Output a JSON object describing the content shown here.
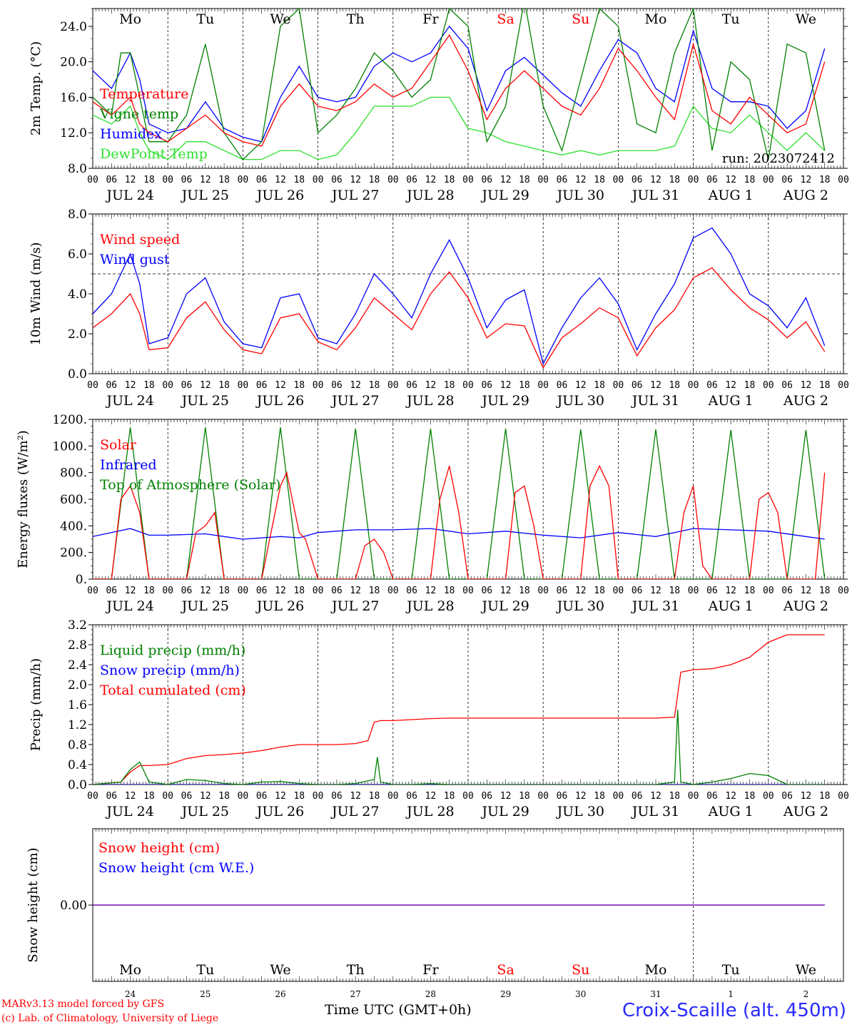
{
  "footer": {
    "model": "MARv3.13 model forced by GFS",
    "copyright": "(c) Lab. of Climatology, University of Liege",
    "time_label": "Time UTC (GMT+0h)",
    "station": "Croix-Scaille (alt. 450m)"
  },
  "colors": {
    "red": "#ff0000",
    "blue": "#0000ff",
    "green": "#008000",
    "lightgreen": "#2de02d",
    "purple": "#8000a0"
  },
  "days": [
    "Mo",
    "Tu",
    "We",
    "Th",
    "Fr",
    "Sa",
    "Su",
    "Mo",
    "Tu",
    "We"
  ],
  "weekend_days": [
    5,
    6
  ],
  "date_labels": [
    "JUL 24",
    "JUL 25",
    "JUL 26",
    "JUL 27",
    "JUL 28",
    "JUL 29",
    "JUL 30",
    "JUL 31",
    "AUG  1",
    "AUG  2"
  ],
  "day_numbers": [
    "24",
    "25",
    "26",
    "27",
    "28",
    "29",
    "30",
    "31",
    "1",
    "2"
  ],
  "hour_ticks": [
    "00",
    "06",
    "12",
    "18"
  ],
  "chart_data": [
    {
      "type": "line",
      "ylabel": "2m Temp. (°C)",
      "ylim": [
        8,
        26
      ],
      "yticks": [
        "8.0",
        "12.0",
        "16.0",
        "20.0",
        "24.0"
      ],
      "run_label": "run: 2023072412",
      "x_unit": "hours since 2023-07-24 00 UTC",
      "series": [
        {
          "name": "Temperature",
          "color": "red",
          "x": [
            0,
            6,
            12,
            15,
            18,
            24,
            30,
            36,
            42,
            48,
            54,
            60,
            66,
            72,
            78,
            84,
            90,
            96,
            102,
            108,
            114,
            120,
            126,
            132,
            138,
            144,
            150,
            156,
            162,
            168,
            174,
            180,
            186,
            192,
            198,
            204,
            210,
            216,
            222,
            228,
            234
          ],
          "y": [
            15.5,
            14,
            16,
            13,
            12,
            11,
            12.5,
            14,
            12,
            11,
            10.5,
            15,
            17.5,
            15,
            14.5,
            15.5,
            17.5,
            16,
            17,
            20,
            23,
            19,
            13.5,
            17,
            19,
            17,
            15,
            14,
            17,
            21.5,
            19,
            16,
            13.5,
            22,
            14.5,
            13,
            16,
            14,
            12,
            13,
            20
          ]
        },
        {
          "name": "Vigne temp",
          "color": "green",
          "x": [
            0,
            6,
            9,
            12,
            15,
            18,
            24,
            30,
            36,
            42,
            48,
            54,
            60,
            66,
            72,
            78,
            84,
            90,
            96,
            102,
            108,
            114,
            120,
            126,
            132,
            138,
            144,
            150,
            156,
            162,
            168,
            174,
            180,
            186,
            192,
            198,
            204,
            210,
            216,
            222,
            228,
            234
          ],
          "y": [
            16,
            14,
            21,
            21,
            16,
            11,
            11,
            14,
            22,
            12,
            9,
            11,
            24,
            26,
            12,
            14,
            17,
            21,
            19,
            16,
            18,
            26,
            24,
            11,
            15,
            27,
            15,
            10,
            18,
            26,
            24,
            13,
            12,
            21,
            26,
            10,
            20,
            18,
            9,
            22,
            21,
            10
          ]
        },
        {
          "name": "Humidex",
          "color": "blue",
          "x": [
            0,
            6,
            12,
            15,
            18,
            24,
            30,
            36,
            42,
            48,
            54,
            60,
            66,
            72,
            78,
            84,
            90,
            96,
            102,
            108,
            114,
            120,
            126,
            132,
            138,
            144,
            150,
            156,
            162,
            168,
            174,
            180,
            186,
            192,
            198,
            204,
            210,
            216,
            222,
            228,
            234
          ],
          "y": [
            19,
            17,
            21,
            18,
            13,
            12,
            12.5,
            15.5,
            12.5,
            11.5,
            11,
            16,
            19.5,
            16,
            15.5,
            16,
            19.5,
            21,
            20,
            21,
            24,
            21.5,
            14.5,
            19,
            20.5,
            18.5,
            16.5,
            15,
            19,
            22.5,
            21,
            17,
            15.5,
            23.5,
            17,
            15.5,
            15.5,
            15,
            12.5,
            14.5,
            21.5
          ]
        },
        {
          "name": "DewPoint Temp",
          "color": "lightgreen",
          "x": [
            0,
            6,
            12,
            15,
            18,
            24,
            30,
            36,
            42,
            48,
            54,
            60,
            66,
            72,
            78,
            84,
            90,
            96,
            102,
            108,
            114,
            120,
            126,
            132,
            138,
            144,
            150,
            156,
            162,
            168,
            174,
            180,
            186,
            192,
            198,
            204,
            210,
            216,
            222,
            228,
            234
          ],
          "y": [
            14,
            13,
            15,
            12,
            10,
            9,
            11,
            11,
            10,
            9,
            9,
            10,
            10,
            9,
            9.5,
            12,
            15,
            15,
            15,
            16,
            16,
            12.5,
            12,
            11,
            10.5,
            10,
            9.5,
            10,
            9.5,
            10,
            10,
            10,
            10.5,
            15,
            12.5,
            12,
            14,
            12,
            10,
            12,
            10
          ]
        }
      ]
    },
    {
      "type": "line",
      "ylabel": "10m Wind (m/s)",
      "ylim": [
        0,
        8
      ],
      "yticks": [
        "0.0",
        "2.0",
        "4.0",
        "6.0",
        "8.0"
      ],
      "reference_line": 5,
      "series": [
        {
          "name": "Wind speed",
          "color": "red",
          "x": [
            0,
            6,
            12,
            15,
            18,
            24,
            30,
            36,
            42,
            48,
            54,
            60,
            66,
            72,
            78,
            84,
            90,
            96,
            102,
            108,
            114,
            120,
            126,
            132,
            138,
            144,
            150,
            156,
            162,
            168,
            174,
            180,
            186,
            192,
            198,
            204,
            210,
            216,
            222,
            228,
            234
          ],
          "y": [
            2.3,
            3,
            4,
            3,
            1.2,
            1.3,
            2.8,
            3.6,
            2.2,
            1.2,
            1,
            2.8,
            3,
            1.6,
            1.2,
            2.3,
            3.8,
            3,
            2.2,
            4,
            5.1,
            3.8,
            1.8,
            2.5,
            2.4,
            0.3,
            1.8,
            2.5,
            3.3,
            2.8,
            0.9,
            2.3,
            3.2,
            4.8,
            5.3,
            4.2,
            3.3,
            2.7,
            1.8,
            2.6,
            1.1
          ]
        },
        {
          "name": "Wind gust",
          "color": "blue",
          "x": [
            0,
            6,
            12,
            15,
            18,
            24,
            30,
            36,
            42,
            48,
            54,
            60,
            66,
            72,
            78,
            84,
            90,
            96,
            102,
            108,
            114,
            120,
            126,
            132,
            138,
            144,
            150,
            156,
            162,
            168,
            174,
            180,
            186,
            192,
            198,
            204,
            210,
            216,
            222,
            228,
            234
          ],
          "y": [
            3,
            4,
            6,
            4.5,
            1.5,
            1.8,
            4,
            4.8,
            2.6,
            1.5,
            1.3,
            3.8,
            4,
            1.8,
            1.5,
            3,
            5,
            4,
            2.8,
            5,
            6.7,
            4.8,
            2.3,
            3.7,
            4.2,
            0.5,
            2.3,
            3.8,
            4.8,
            3.5,
            1.2,
            3,
            4.5,
            6.8,
            7.3,
            6,
            4,
            3.4,
            2.3,
            3.8,
            1.4
          ]
        }
      ]
    },
    {
      "type": "line",
      "ylabel": "Energy fluxes (W/m²)",
      "ylim": [
        0,
        1200
      ],
      "yticks": [
        "0.",
        "200.",
        "400.",
        "600.",
        "800.",
        "1000.",
        "1200."
      ],
      "series": [
        {
          "name": "Solar",
          "color": "red",
          "x": [
            0,
            6,
            9,
            12,
            15,
            18,
            24,
            30,
            33,
            36,
            39,
            42,
            48,
            54,
            60,
            62,
            66,
            68,
            72,
            78,
            84,
            87,
            90,
            93,
            96,
            102,
            108,
            111,
            114,
            117,
            120,
            126,
            132,
            135,
            138,
            141,
            144,
            150,
            156,
            159,
            162,
            165,
            168,
            174,
            180,
            186,
            189,
            192,
            195,
            198,
            204,
            210,
            213,
            216,
            219,
            222,
            228,
            231,
            234
          ],
          "y": [
            0,
            0,
            600,
            700,
            500,
            0,
            0,
            0,
            350,
            400,
            500,
            0,
            0,
            0,
            700,
            800,
            350,
            300,
            0,
            0,
            0,
            250,
            300,
            200,
            0,
            0,
            0,
            600,
            850,
            500,
            0,
            0,
            0,
            650,
            700,
            400,
            0,
            0,
            0,
            700,
            850,
            700,
            0,
            0,
            0,
            0,
            500,
            700,
            100,
            0,
            0,
            0,
            600,
            650,
            500,
            0,
            0,
            0,
            800
          ]
        },
        {
          "name": "Infrared",
          "color": "blue",
          "x": [
            0,
            12,
            18,
            24,
            36,
            42,
            48,
            60,
            66,
            72,
            84,
            96,
            108,
            120,
            132,
            144,
            156,
            168,
            180,
            192,
            204,
            216,
            228,
            234
          ],
          "y": [
            320,
            380,
            330,
            330,
            340,
            320,
            300,
            320,
            310,
            350,
            370,
            370,
            380,
            340,
            360,
            330,
            310,
            350,
            320,
            380,
            370,
            360,
            320,
            300
          ]
        },
        {
          "name": "Top of Atmosphere (Solar)",
          "color": "green",
          "x": [
            0,
            6,
            12,
            18,
            24,
            30,
            36,
            42,
            48,
            54,
            60,
            66,
            72,
            78,
            84,
            90,
            96,
            102,
            108,
            114,
            120,
            126,
            132,
            138,
            144,
            150,
            156,
            162,
            168,
            174,
            180,
            186,
            192,
            198,
            204,
            210,
            216,
            222,
            228,
            234
          ],
          "y": [
            0,
            0,
            1140,
            0,
            0,
            0,
            1140,
            0,
            0,
            0,
            1140,
            0,
            0,
            0,
            1130,
            0,
            0,
            0,
            1130,
            0,
            0,
            0,
            1130,
            0,
            0,
            0,
            1125,
            0,
            0,
            0,
            1125,
            0,
            0,
            0,
            1120,
            0,
            0,
            0,
            1120,
            0
          ]
        }
      ]
    },
    {
      "type": "line",
      "ylabel": "Precip (mm/h)",
      "ylim": [
        0,
        3.2
      ],
      "yticks": [
        "0.0",
        "0.4",
        "0.8",
        "1.2",
        "1.6",
        "2.0",
        "2.4",
        "2.8",
        "3.2"
      ],
      "series": [
        {
          "name": "Liquid precip (mm/h)",
          "color": "green",
          "x": [
            0,
            9,
            12,
            15,
            18,
            24,
            30,
            36,
            42,
            48,
            54,
            60,
            66,
            72,
            78,
            84,
            90,
            91,
            92,
            96,
            102,
            108,
            114,
            120,
            126,
            132,
            138,
            144,
            150,
            156,
            162,
            168,
            174,
            180,
            186,
            187,
            188,
            192,
            198,
            204,
            210,
            216,
            222,
            228,
            234
          ],
          "y": [
            0,
            0.05,
            0.3,
            0.45,
            0.05,
            0,
            0.1,
            0.08,
            0.02,
            0,
            0.05,
            0.06,
            0.02,
            0,
            0,
            0.02,
            0.1,
            0.55,
            0.05,
            0,
            0,
            0.02,
            0,
            0,
            0,
            0,
            0,
            0,
            0,
            0,
            0,
            0,
            0,
            0,
            0.05,
            1.5,
            0.05,
            0,
            0.05,
            0.12,
            0.22,
            0.18,
            0,
            0,
            0
          ]
        },
        {
          "name": "Snow precip (mm/h)",
          "color": "blue",
          "x": [
            0,
            234
          ],
          "y": [
            0,
            0
          ]
        },
        {
          "name": "Total cumulated (cm)",
          "color": "red",
          "x": [
            0,
            9,
            12,
            15,
            18,
            24,
            30,
            36,
            42,
            48,
            54,
            60,
            66,
            72,
            78,
            84,
            88,
            90,
            92,
            96,
            102,
            108,
            114,
            120,
            126,
            132,
            138,
            144,
            150,
            156,
            162,
            168,
            174,
            180,
            186,
            188,
            192,
            198,
            204,
            210,
            216,
            222,
            228,
            234
          ],
          "y": [
            0,
            0.05,
            0.25,
            0.38,
            0.38,
            0.4,
            0.52,
            0.58,
            0.6,
            0.63,
            0.68,
            0.75,
            0.8,
            0.8,
            0.8,
            0.82,
            0.88,
            1.25,
            1.28,
            1.28,
            1.3,
            1.32,
            1.33,
            1.33,
            1.33,
            1.33,
            1.33,
            1.33,
            1.33,
            1.33,
            1.33,
            1.33,
            1.33,
            1.33,
            1.35,
            2.25,
            2.3,
            2.32,
            2.4,
            2.55,
            2.85,
            3.0,
            3.0,
            3.0
          ]
        }
      ]
    },
    {
      "type": "line",
      "ylabel": "Snow height (cm)",
      "ylim": [
        -1,
        1
      ],
      "yticks": [
        "0.00"
      ],
      "series": [
        {
          "name": "Snow height (cm)",
          "color": "red",
          "x": [
            0,
            234
          ],
          "y": [
            0,
            0
          ]
        },
        {
          "name": "Snow height (cm W.E.)",
          "color": "blue",
          "x": [
            0,
            234
          ],
          "y": [
            0,
            0
          ]
        }
      ]
    }
  ]
}
